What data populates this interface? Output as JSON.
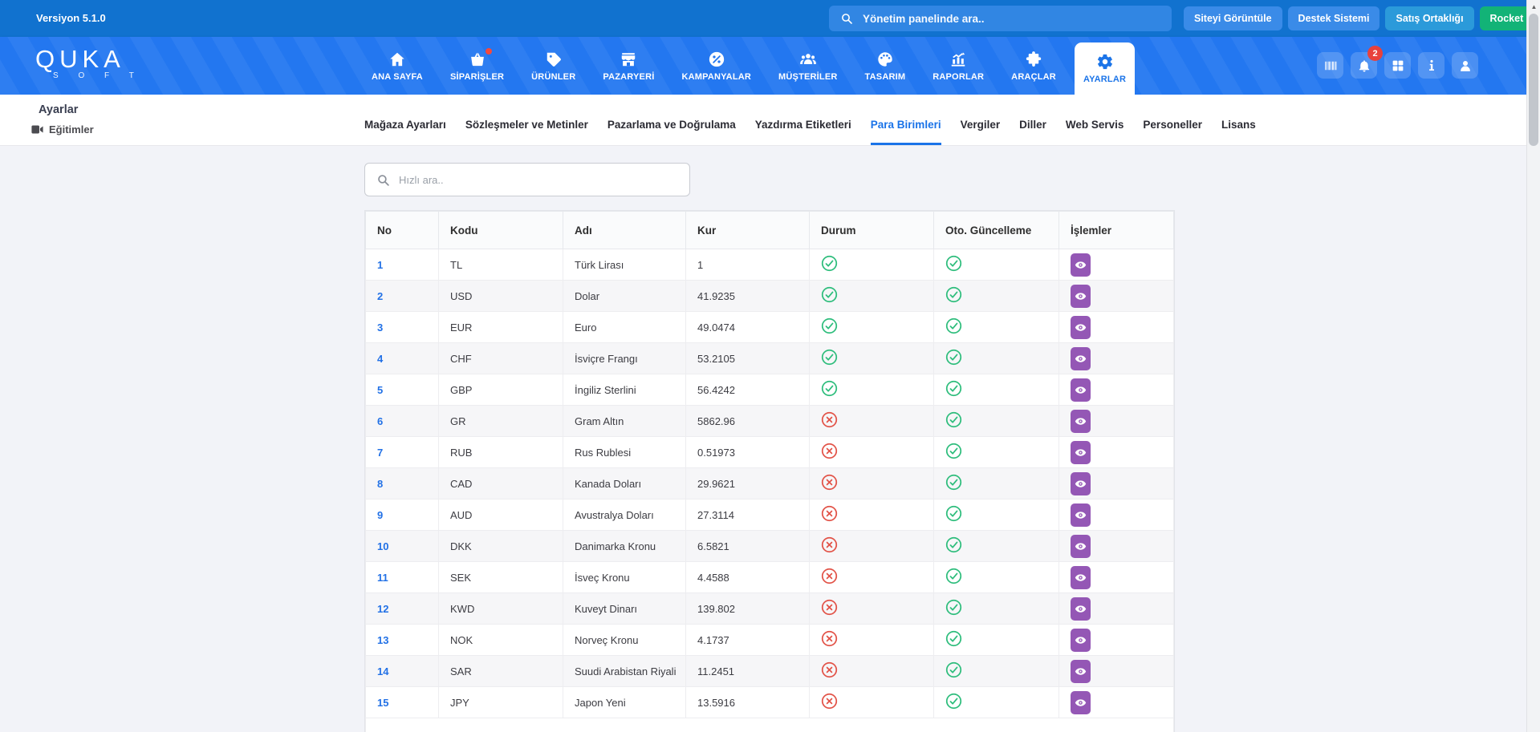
{
  "topbar": {
    "version": "Versiyon 5.1.0",
    "search_placeholder": "Yönetim panelinde ara..",
    "buttons": [
      {
        "key": "siteyi-goruntule",
        "label": "Siteyi Görüntüle",
        "color": "#3a8be8"
      },
      {
        "key": "destek-sistemi",
        "label": "Destek Sistemi",
        "color": "#3a8be8"
      },
      {
        "key": "satis-ortakligi",
        "label": "Satış Ortaklığı",
        "color": "#2b9ada"
      },
      {
        "key": "rocket",
        "label": "Rocket",
        "color": "#12b377"
      }
    ]
  },
  "navbar": {
    "logo_main": "QUKA",
    "logo_sub": "S O F T",
    "notification_count": "2",
    "items": [
      {
        "key": "ana-sayfa",
        "label": "ANA SAYFA",
        "icon": "home-icon",
        "active": false,
        "badge": false
      },
      {
        "key": "siparisler",
        "label": "SİPARİŞLER",
        "icon": "basket-icon",
        "active": false,
        "badge": true
      },
      {
        "key": "urunler",
        "label": "ÜRÜNLER",
        "icon": "tag-icon",
        "active": false,
        "badge": false
      },
      {
        "key": "pazaryeri",
        "label": "PAZARYERİ",
        "icon": "storefront-icon",
        "active": false,
        "badge": false
      },
      {
        "key": "kampanyalar",
        "label": "KAMPANYALAR",
        "icon": "percent-icon",
        "active": false,
        "badge": false
      },
      {
        "key": "musteriler",
        "label": "MÜŞTERİLER",
        "icon": "customers-icon",
        "active": false,
        "badge": false
      },
      {
        "key": "tasarim",
        "label": "TASARIM",
        "icon": "palette-icon",
        "active": false,
        "badge": false
      },
      {
        "key": "raporlar",
        "label": "RAPORLAR",
        "icon": "chart-icon",
        "active": false,
        "badge": false
      },
      {
        "key": "araclar",
        "label": "ARAÇLAR",
        "icon": "puzzle-icon",
        "active": false,
        "badge": false
      },
      {
        "key": "ayarlar",
        "label": "AYARLAR",
        "icon": "gear-icon",
        "active": true,
        "badge": false
      }
    ],
    "right_icons": [
      {
        "key": "barcode",
        "icon": "barcode-icon"
      },
      {
        "key": "notifications",
        "icon": "bell-icon",
        "badge": "2"
      },
      {
        "key": "apps",
        "icon": "grid-icon"
      },
      {
        "key": "info",
        "icon": "info-icon"
      },
      {
        "key": "account",
        "icon": "person-icon"
      }
    ]
  },
  "subheader": {
    "title": "Ayarlar",
    "subtitle": "Eğitimler",
    "tabs": [
      {
        "key": "magaza-ayarlari",
        "label": "Mağaza Ayarları",
        "active": false
      },
      {
        "key": "sozlesmeler-ve-metinler",
        "label": "Sözleşmeler ve Metinler",
        "active": false
      },
      {
        "key": "pazarlama-ve-dogrulama",
        "label": "Pazarlama ve Doğrulama",
        "active": false
      },
      {
        "key": "yazdirma-etiketleri",
        "label": "Yazdırma Etiketleri",
        "active": false
      },
      {
        "key": "para-birimleri",
        "label": "Para Birimleri",
        "active": true
      },
      {
        "key": "vergiler",
        "label": "Vergiler",
        "active": false
      },
      {
        "key": "diller",
        "label": "Diller",
        "active": false
      },
      {
        "key": "web-servis",
        "label": "Web Servis",
        "active": false
      },
      {
        "key": "personeller",
        "label": "Personeller",
        "active": false
      },
      {
        "key": "lisans",
        "label": "Lisans",
        "active": false
      }
    ]
  },
  "content": {
    "quick_search_placeholder": "Hızlı ara..",
    "table": {
      "columns": [
        "No",
        "Kodu",
        "Adı",
        "Kur",
        "Durum",
        "Oto. Güncelleme",
        "İşlemler"
      ],
      "status_icons": {
        "on": "check-circle-icon",
        "off": "x-circle-icon",
        "action": "eye-icon"
      },
      "rows": [
        {
          "no": "1",
          "code": "TL",
          "name": "Türk Lirası",
          "rate": "1",
          "status": true,
          "auto_update": true
        },
        {
          "no": "2",
          "code": "USD",
          "name": "Dolar",
          "rate": "41.9235",
          "status": true,
          "auto_update": true
        },
        {
          "no": "3",
          "code": "EUR",
          "name": "Euro",
          "rate": "49.0474",
          "status": true,
          "auto_update": true
        },
        {
          "no": "4",
          "code": "CHF",
          "name": "İsviçre Frangı",
          "rate": "53.2105",
          "status": true,
          "auto_update": true
        },
        {
          "no": "5",
          "code": "GBP",
          "name": "İngiliz Sterlini",
          "rate": "56.4242",
          "status": true,
          "auto_update": true
        },
        {
          "no": "6",
          "code": "GR",
          "name": "Gram Altın",
          "rate": "5862.96",
          "status": false,
          "auto_update": true
        },
        {
          "no": "7",
          "code": "RUB",
          "name": "Rus Rublesi",
          "rate": "0.51973",
          "status": false,
          "auto_update": true
        },
        {
          "no": "8",
          "code": "CAD",
          "name": "Kanada Doları",
          "rate": "29.9621",
          "status": false,
          "auto_update": true
        },
        {
          "no": "9",
          "code": "AUD",
          "name": "Avustralya Doları",
          "rate": "27.3114",
          "status": false,
          "auto_update": true
        },
        {
          "no": "10",
          "code": "DKK",
          "name": "Danimarka Kronu",
          "rate": "6.5821",
          "status": false,
          "auto_update": true
        },
        {
          "no": "11",
          "code": "SEK",
          "name": "İsveç Kronu",
          "rate": "4.4588",
          "status": false,
          "auto_update": true
        },
        {
          "no": "12",
          "code": "KWD",
          "name": "Kuveyt Dinarı",
          "rate": "139.802",
          "status": false,
          "auto_update": true
        },
        {
          "no": "13",
          "code": "NOK",
          "name": "Norveç Kronu",
          "rate": "4.1737",
          "status": false,
          "auto_update": true
        },
        {
          "no": "14",
          "code": "SAR",
          "name": "Suudi Arabistan Riyali",
          "rate": "11.2451",
          "status": false,
          "auto_update": true
        },
        {
          "no": "15",
          "code": "JPY",
          "name": "Japon Yeni",
          "rate": "13.5916",
          "status": false,
          "auto_update": true
        }
      ]
    }
  },
  "colors": {
    "topbar_bg": "#1172cf",
    "navbar_bg": "#2377f0",
    "active_blue": "#1a73e8",
    "status_on_green": "#2ebd7c",
    "status_off_red": "#e25348",
    "action_purple": "#9457b5",
    "badge_red": "#e8413c",
    "rocket_green": "#12b377"
  }
}
